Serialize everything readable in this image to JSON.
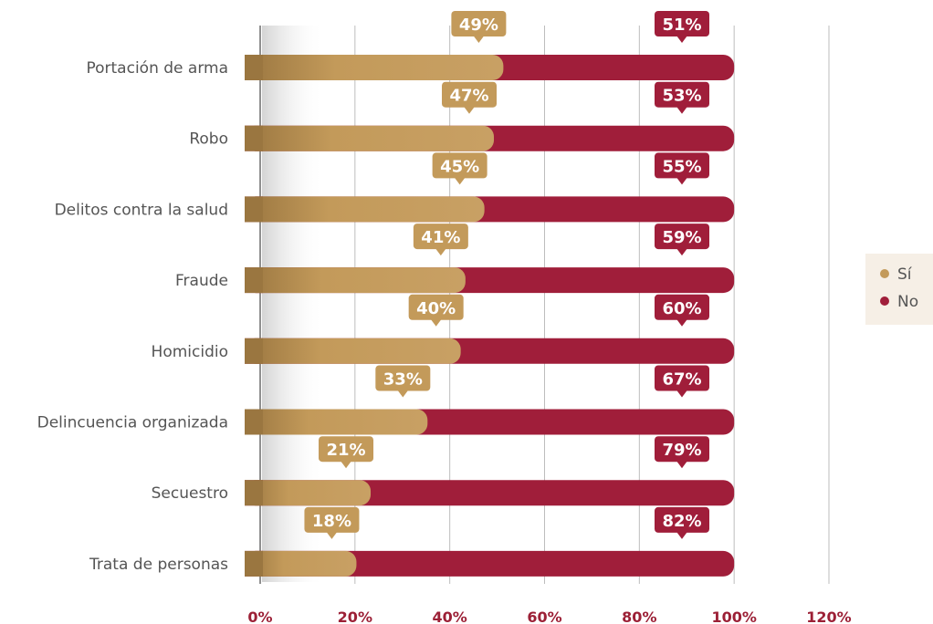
{
  "chart_data": {
    "type": "bar",
    "orientation": "horizontal",
    "stacked": true,
    "categories": [
      "Portación de arma",
      "Robo",
      "Delitos contra la salud",
      "Fraude",
      "Homicidio",
      "Delincuencia organizada",
      "Secuestro",
      "Trata de personas"
    ],
    "series": [
      {
        "name": "Sí",
        "values": [
          49,
          47,
          45,
          41,
          40,
          33,
          21,
          18
        ],
        "labels": [
          "49%",
          "47%",
          "45%",
          "41%",
          "40%",
          "33%",
          "21%",
          "18%"
        ],
        "color": "#c39a5a"
      },
      {
        "name": "No",
        "values": [
          51,
          53,
          55,
          59,
          60,
          67,
          79,
          82
        ],
        "labels": [
          "51%",
          "53%",
          "55%",
          "59%",
          "60%",
          "67%",
          "79%",
          "82%"
        ],
        "color": "#a01e3a"
      }
    ],
    "xticks": [
      "0%",
      "20%",
      "40%",
      "60%",
      "80%",
      "100%",
      "120%"
    ],
    "xlim": [
      0,
      120
    ],
    "grid": true,
    "legend_position": "right"
  }
}
